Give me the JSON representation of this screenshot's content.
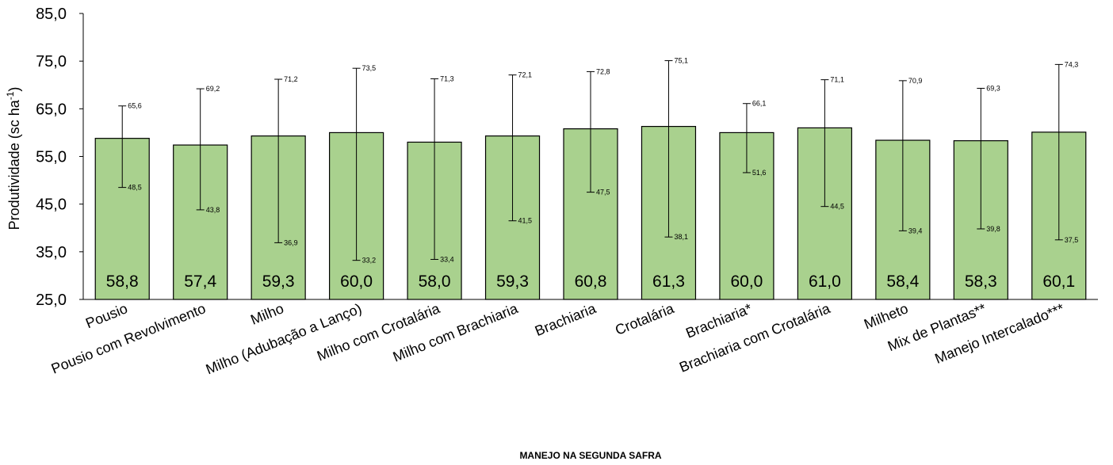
{
  "chart_data": {
    "type": "bar",
    "title": "",
    "xlabel": "MANEJO NA SEGUNDA SAFRA",
    "ylabel": {
      "main": "Produtividade (sc ha",
      "sup": "-1",
      "tail": ")"
    },
    "ylim": [
      25.0,
      85.0
    ],
    "yticks": [
      "25,0",
      "35,0",
      "45,0",
      "55,0",
      "65,0",
      "75,0",
      "85,0"
    ],
    "grid": false,
    "legend": "none",
    "bar_color": "#a9d18e",
    "bar_edge_color": "#000000",
    "categories": [
      "Pousio",
      "Pousio com Revolvimento",
      "Milho",
      "Milho (Adubação a Lanço)",
      "Milho com Crotalária",
      "Milho com Brachiaria",
      "Brachiaria",
      "Crotalária",
      "Brachiaria*",
      "Brachiaria com Crotalária",
      "Milheto",
      "Mix de Plantas**",
      "Manejo Intercalado***"
    ],
    "values": [
      58.8,
      57.4,
      59.3,
      60.0,
      58.0,
      59.3,
      60.8,
      61.3,
      60.0,
      61.0,
      58.4,
      58.3,
      60.1
    ],
    "value_labels": [
      "58,8",
      "57,4",
      "59,3",
      "60,0",
      "58,0",
      "59,3",
      "60,8",
      "61,3",
      "60,0",
      "61,0",
      "58,4",
      "58,3",
      "60,1"
    ],
    "error_high": [
      65.6,
      69.2,
      71.2,
      73.5,
      71.3,
      72.1,
      72.8,
      75.1,
      66.1,
      71.1,
      70.9,
      69.3,
      74.3
    ],
    "error_high_labels": [
      "65,6",
      "69,2",
      "71,2",
      "73,5",
      "71,3",
      "72,1",
      "72,8",
      "75,1",
      "66,1",
      "71,1",
      "70,9",
      "69,3",
      "74,3"
    ],
    "error_low": [
      48.5,
      43.8,
      36.9,
      33.2,
      33.4,
      41.5,
      47.5,
      38.1,
      51.6,
      44.5,
      39.4,
      39.8,
      37.5
    ],
    "error_low_labels": [
      "48,5",
      "43,8",
      "36,9",
      "33,2",
      "33,4",
      "41,5",
      "47,5",
      "38,1",
      "51,6",
      "44,5",
      "39,4",
      "39,8",
      "37,5"
    ]
  }
}
